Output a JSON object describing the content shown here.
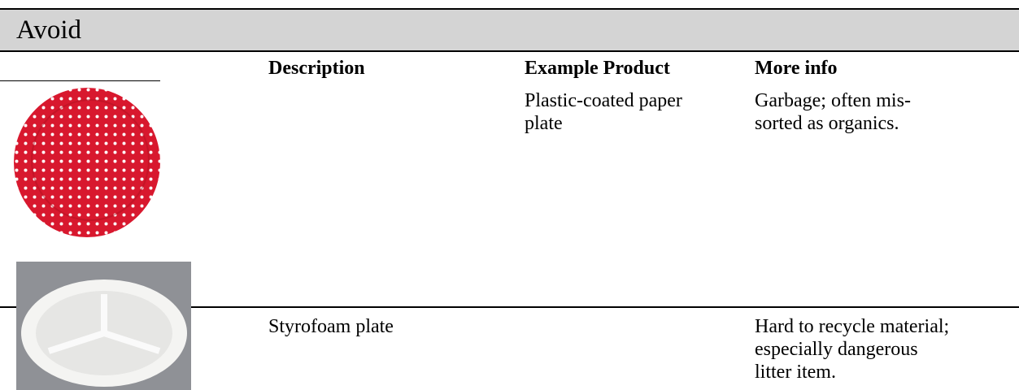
{
  "header": {
    "title": "Avoid"
  },
  "table": {
    "columns": [
      "Description",
      "Example Product",
      "More info"
    ],
    "rows": [
      {
        "example": "Plastic-coated paper plate",
        "info": "Garbage; often mis-sorted as organics."
      },
      {
        "description": "Styrofoam plate",
        "info": "Hard to recycle material; especially dangerous litter item."
      }
    ]
  }
}
